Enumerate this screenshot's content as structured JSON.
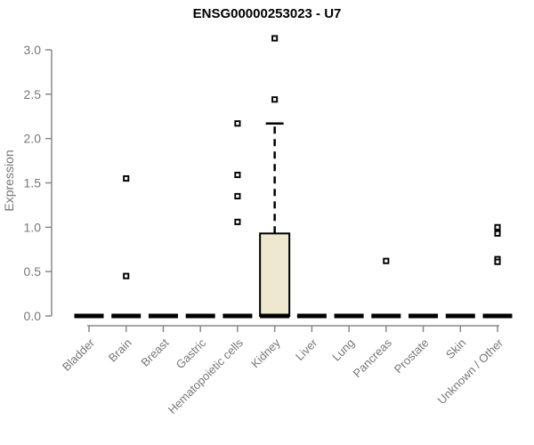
{
  "chart_data": {
    "type": "boxplot",
    "title": "ENSG00000253023 - U7",
    "xlabel": "",
    "ylabel": "Expression",
    "ylim": [
      0.0,
      3.0
    ],
    "yticks": [
      0.0,
      0.5,
      1.0,
      1.5,
      2.0,
      2.5,
      3.0
    ],
    "grid": false,
    "legend": false,
    "categories": [
      "Bladder",
      "Brain",
      "Breast",
      "Gastric",
      "Hematopoietic cells",
      "Kidney",
      "Liver",
      "Lung",
      "Pancreas",
      "Prostate",
      "Skin",
      "Unknown / Other"
    ],
    "boxes": [
      {
        "category": "Bladder",
        "median": 0.0,
        "q1": 0.0,
        "q3": 0.0,
        "whisker_low": 0.0,
        "whisker_high": 0.0,
        "outliers": []
      },
      {
        "category": "Brain",
        "median": 0.0,
        "q1": 0.0,
        "q3": 0.0,
        "whisker_low": 0.0,
        "whisker_high": 0.0,
        "outliers": [
          1.55,
          0.45
        ]
      },
      {
        "category": "Breast",
        "median": 0.0,
        "q1": 0.0,
        "q3": 0.0,
        "whisker_low": 0.0,
        "whisker_high": 0.0,
        "outliers": []
      },
      {
        "category": "Gastric",
        "median": 0.0,
        "q1": 0.0,
        "q3": 0.0,
        "whisker_low": 0.0,
        "whisker_high": 0.0,
        "outliers": []
      },
      {
        "category": "Hematopoietic cells",
        "median": 0.0,
        "q1": 0.0,
        "q3": 0.0,
        "whisker_low": 0.0,
        "whisker_high": 0.0,
        "outliers": [
          2.17,
          1.59,
          1.35,
          1.06
        ]
      },
      {
        "category": "Kidney",
        "median": 0.0,
        "q1": 0.0,
        "q3": 0.93,
        "whisker_low": 0.0,
        "whisker_high": 2.17,
        "outliers": [
          3.13,
          2.44
        ]
      },
      {
        "category": "Liver",
        "median": 0.0,
        "q1": 0.0,
        "q3": 0.0,
        "whisker_low": 0.0,
        "whisker_high": 0.0,
        "outliers": []
      },
      {
        "category": "Lung",
        "median": 0.0,
        "q1": 0.0,
        "q3": 0.0,
        "whisker_low": 0.0,
        "whisker_high": 0.0,
        "outliers": []
      },
      {
        "category": "Pancreas",
        "median": 0.0,
        "q1": 0.0,
        "q3": 0.0,
        "whisker_low": 0.0,
        "whisker_high": 0.0,
        "outliers": [
          0.62
        ]
      },
      {
        "category": "Prostate",
        "median": 0.0,
        "q1": 0.0,
        "q3": 0.0,
        "whisker_low": 0.0,
        "whisker_high": 0.0,
        "outliers": []
      },
      {
        "category": "Skin",
        "median": 0.0,
        "q1": 0.0,
        "q3": 0.0,
        "whisker_low": 0.0,
        "whisker_high": 0.0,
        "outliers": []
      },
      {
        "category": "Unknown / Other",
        "median": 0.0,
        "q1": 0.0,
        "q3": 0.0,
        "whisker_low": 0.0,
        "whisker_high": 0.0,
        "outliers": [
          1.0,
          0.93,
          0.64,
          0.61
        ]
      }
    ],
    "colors": {
      "box_fill": "#EDE8CE",
      "box_border": "#000000",
      "median_color": "#000000",
      "whisker_color": "#000000",
      "outlier_stroke": "#000000",
      "outlier_fill": "#ffffff",
      "axis_line_color": "#888888",
      "tick_label_color": "#777777",
      "title_color": "#000000"
    }
  }
}
